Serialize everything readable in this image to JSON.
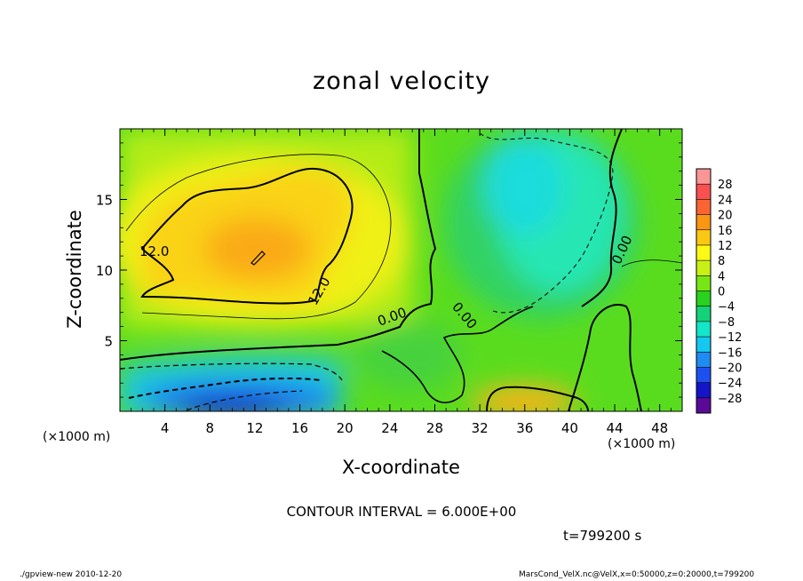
{
  "chart_data": {
    "type": "heatmap",
    "title": "zonal velocity",
    "xlabel": "X-coordinate",
    "ylabel": "Z-coordinate",
    "x_unit_note": "(×1000 m)",
    "y_unit_note": "(×1000 m)",
    "xlim": [
      0,
      50
    ],
    "ylim": [
      0,
      20
    ],
    "x_ticks": [
      4,
      8,
      12,
      16,
      20,
      24,
      28,
      32,
      36,
      40,
      44,
      48
    ],
    "y_ticks": [
      5,
      10,
      15
    ],
    "colorbar_levels": [
      -28,
      -24,
      -20,
      -16,
      -12,
      -8,
      -4,
      0,
      4,
      8,
      12,
      16,
      20,
      24,
      28
    ],
    "colorbar_colors": [
      "#5a0a96",
      "#1414c8",
      "#1e50f0",
      "#1e8cf0",
      "#14c8f0",
      "#14e6c8",
      "#14d278",
      "#28d21e",
      "#78e614",
      "#c8f014",
      "#fafa14",
      "#fac814",
      "#fa9614",
      "#fa6432",
      "#fa5050",
      "#fa9696"
    ],
    "contour_labels": [
      "12.0",
      "12.0",
      "0.00",
      "0.00",
      "0.00"
    ],
    "contour_interval": "CONTOUR INTERVAL = 6.000E+00",
    "time_label": "t=799200 s",
    "grid": false
  },
  "footer": {
    "left": "./gpview-new  2010-12-20",
    "right": "MarsCond_VelX.nc@VelX,x=0:50000,z=0:20000,t=799200"
  }
}
